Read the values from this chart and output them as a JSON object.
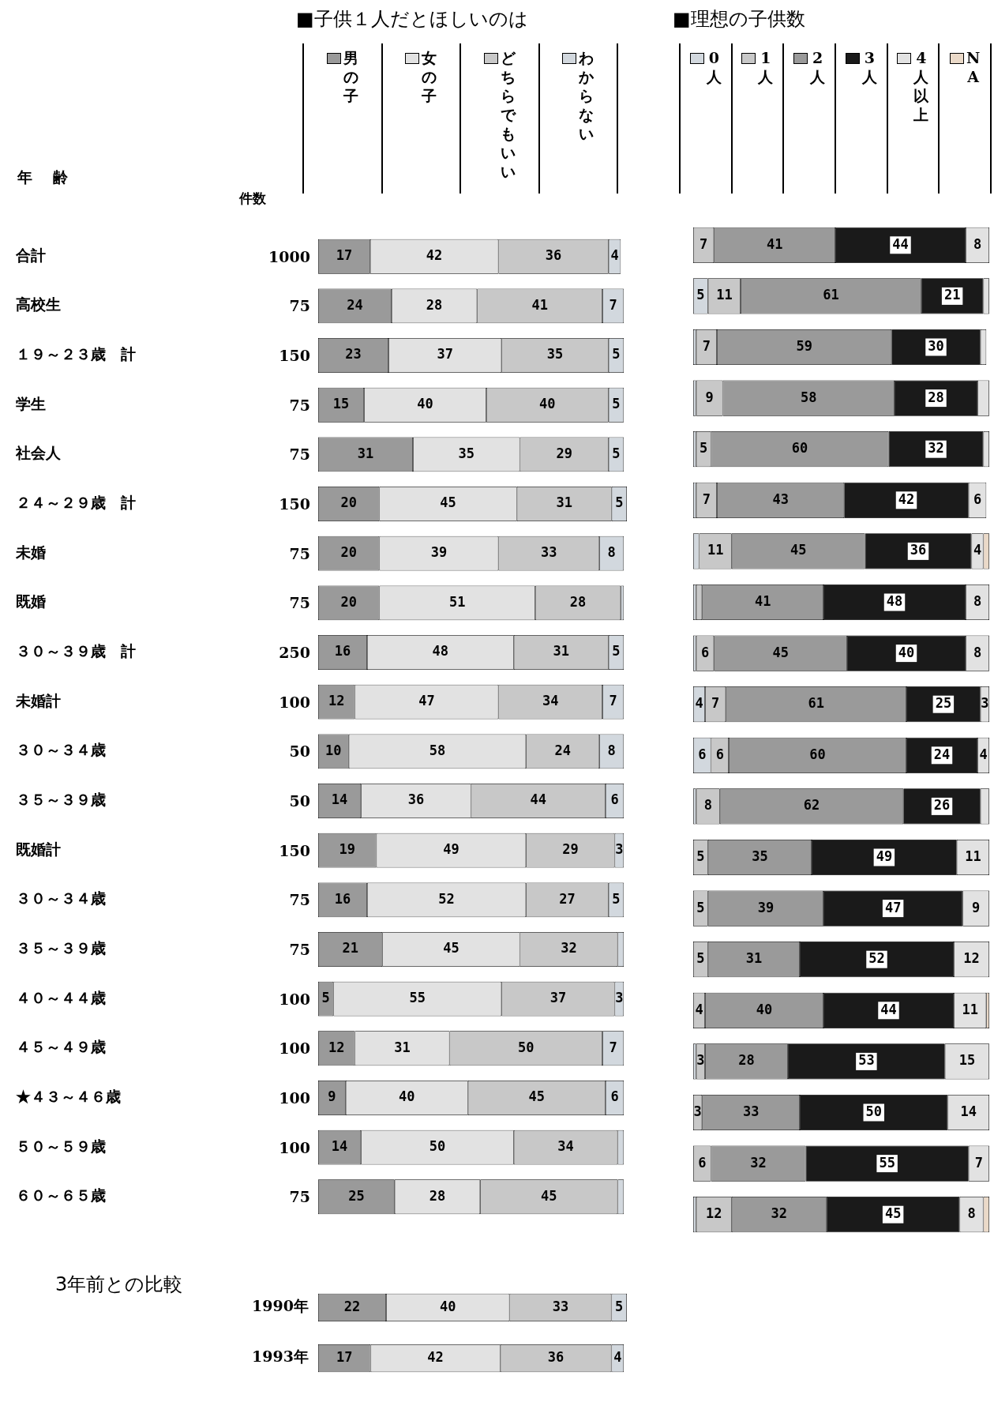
{
  "chart_data": [
    {
      "type": "bar",
      "orientation": "horizontal",
      "stacked": true,
      "title": "■子供１人だとほしいのは",
      "ylabel": "年齢",
      "y2label": "件数",
      "legend": "top",
      "tick_labels": "y",
      "xlim": [
        0,
        101
      ],
      "categories": [
        "合計",
        "高校生",
        "１９～２３歳　計",
        "学生",
        "社会人",
        "２４～２９歳　計",
        "未婚",
        "既婚",
        "３０～３９歳　計",
        "未婚計",
        "３０～３４歳",
        "３５～３９歳",
        "既婚計",
        "３０～３４歳",
        "３５～３９歳",
        "４０～４４歳",
        "４５～４９歳",
        "★４３～４６歳",
        "５０～５９歳",
        "６０～６５歳"
      ],
      "y2_categories": [
        "1000",
        "75",
        "150",
        "75",
        "75",
        "150",
        "75",
        "75",
        "250",
        "100",
        "50",
        "50",
        "150",
        "75",
        "75",
        "100",
        "100",
        "100",
        "100",
        "75"
      ],
      "series": [
        {
          "name": "男の子",
          "color": "#9a9a9a",
          "values": [
            17,
            24,
            23,
            15,
            31,
            20,
            20,
            20,
            16,
            12,
            10,
            14,
            19,
            16,
            21,
            5,
            12,
            9,
            14,
            25
          ],
          "value_labels": [
            "17",
            "24",
            "23",
            "15",
            "31",
            "20",
            "20",
            "20",
            "16",
            "12",
            "10",
            "14",
            "19",
            "16",
            "21",
            "5",
            "12",
            "9",
            "14",
            "25"
          ]
        },
        {
          "name": "女の子",
          "color": "#e2e2e2",
          "values": [
            42,
            28,
            37,
            40,
            35,
            45,
            39,
            51,
            48,
            47,
            58,
            36,
            49,
            52,
            45,
            55,
            31,
            40,
            50,
            28
          ],
          "value_labels": [
            "42",
            "28",
            "37",
            "40",
            "35",
            "45",
            "39",
            "51",
            "48",
            "47",
            "58",
            "36",
            "49",
            "52",
            "45",
            "55",
            "31",
            "40",
            "50",
            "28"
          ]
        },
        {
          "name": "どちらでもいい",
          "color": "#c8c8c8",
          "values": [
            36,
            41,
            35,
            40,
            29,
            31,
            33,
            28,
            31,
            34,
            24,
            44,
            29,
            27,
            32,
            37,
            50,
            45,
            34,
            45
          ],
          "value_labels": [
            "36",
            "41",
            "35",
            "40",
            "29",
            "31",
            "33",
            "28",
            "31",
            "34",
            "24",
            "44",
            "29",
            "27",
            "32",
            "37",
            "50",
            "45",
            "34",
            "45"
          ]
        },
        {
          "name": "わからない",
          "color": "#d2d8de",
          "values": [
            4,
            7,
            5,
            5,
            5,
            5,
            8,
            1,
            5,
            7,
            8,
            6,
            3,
            5,
            2,
            3,
            7,
            6,
            2,
            2
          ],
          "value_labels": [
            "4",
            "7",
            "5",
            "5",
            "5",
            "5",
            "8",
            null,
            "5",
            "7",
            "8",
            "6",
            "3",
            "5",
            null,
            "3",
            "7",
            "6",
            null,
            null
          ]
        }
      ]
    },
    {
      "type": "bar",
      "orientation": "horizontal",
      "stacked": true,
      "title": "■理想の子供数",
      "legend": "top",
      "tick_labels": false,
      "xlim": [
        0,
        100
      ],
      "categories": [
        null,
        null,
        null,
        null,
        null,
        null,
        null,
        null,
        null,
        null,
        null,
        null,
        null,
        null,
        null,
        null,
        null,
        null,
        null,
        null
      ],
      "series": [
        {
          "name": "0人",
          "color": "#d2d8de",
          "values": [
            null,
            5,
            1,
            1,
            1,
            1,
            2,
            1,
            1,
            4,
            6,
            1,
            null,
            null,
            null,
            null,
            1,
            null,
            null,
            1
          ],
          "value_labels": [
            null,
            "5",
            null,
            null,
            null,
            null,
            null,
            null,
            null,
            "4",
            "6",
            null,
            null,
            null,
            null,
            null,
            null,
            null,
            null,
            null
          ]
        },
        {
          "name": "1人",
          "color": "#c8c8c8",
          "values": [
            7,
            11,
            7,
            9,
            5,
            7,
            11,
            2,
            6,
            7,
            6,
            8,
            5,
            5,
            5,
            4,
            3,
            3,
            6,
            12
          ],
          "value_labels": [
            "7",
            "11",
            "7",
            "9",
            "5",
            "7",
            "11",
            null,
            "6",
            "7",
            "6",
            "8",
            "5",
            "5",
            "5",
            "4",
            "3",
            "3",
            "6",
            "12"
          ]
        },
        {
          "name": "2人",
          "color": "#9a9a9a",
          "values": [
            41,
            61,
            59,
            58,
            60,
            43,
            45,
            41,
            45,
            61,
            60,
            62,
            35,
            39,
            31,
            40,
            28,
            33,
            32,
            32
          ],
          "value_labels": [
            "41",
            "61",
            "59",
            "58",
            "60",
            "43",
            "45",
            "41",
            "45",
            "61",
            "60",
            "62",
            "35",
            "39",
            "31",
            "40",
            "28",
            "33",
            "32",
            "32"
          ]
        },
        {
          "name": "3人",
          "color": "#1a1a1a",
          "values": [
            44,
            21,
            30,
            28,
            32,
            42,
            36,
            48,
            40,
            25,
            24,
            26,
            49,
            47,
            52,
            44,
            53,
            50,
            55,
            45
          ],
          "value_labels": [
            "44",
            "21",
            "30",
            "28",
            "32",
            "42",
            "36",
            "48",
            "40",
            "25",
            "24",
            "26",
            "49",
            "47",
            "52",
            "44",
            "53",
            "50",
            "55",
            "45"
          ]
        },
        {
          "name": "4人以上",
          "color": "#e2e2e2",
          "values": [
            8,
            2,
            2,
            4,
            2,
            6,
            4,
            8,
            8,
            3,
            4,
            3,
            11,
            9,
            12,
            11,
            15,
            14,
            7,
            8
          ],
          "value_labels": [
            "8",
            null,
            null,
            null,
            null,
            "6",
            "4",
            "8",
            "8",
            "3",
            "4",
            null,
            "11",
            "9",
            "12",
            "11",
            "15",
            "14",
            "7",
            "8"
          ]
        },
        {
          "name": "NA",
          "color": "#ead9c8",
          "values": [
            null,
            null,
            null,
            null,
            null,
            null,
            2,
            null,
            null,
            null,
            null,
            null,
            null,
            null,
            null,
            1,
            null,
            null,
            null,
            2
          ],
          "value_labels": [
            null,
            null,
            null,
            null,
            null,
            null,
            null,
            null,
            null,
            null,
            null,
            null,
            null,
            null,
            null,
            null,
            null,
            null,
            null,
            null
          ]
        }
      ]
    },
    {
      "type": "bar",
      "orientation": "horizontal",
      "stacked": true,
      "title": "3年前との比較",
      "tick_labels": "y",
      "xlim": [
        0,
        100
      ],
      "categories": [
        "1990年",
        "1993年"
      ],
      "series": [
        {
          "color": "#9a9a9a",
          "values": [
            22,
            17
          ],
          "value_labels": [
            "22",
            "17"
          ]
        },
        {
          "color": "#e2e2e2",
          "values": [
            40,
            42
          ],
          "value_labels": [
            "40",
            "42"
          ]
        },
        {
          "color": "#c8c8c8",
          "values": [
            33,
            36
          ],
          "value_labels": [
            "33",
            "36"
          ]
        },
        {
          "color": "#d2d8de",
          "values": [
            5,
            4
          ],
          "value_labels": [
            "5",
            "4"
          ]
        }
      ]
    }
  ]
}
